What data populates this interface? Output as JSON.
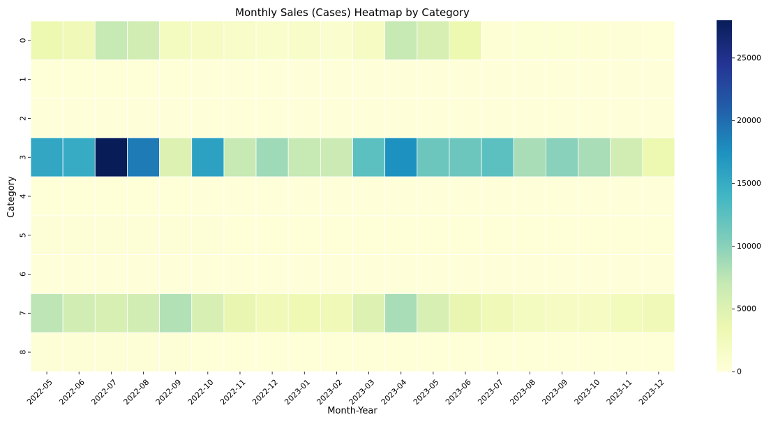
{
  "chart_data": {
    "type": "heatmap",
    "title": "Monthly Sales (Cases) Heatmap by Category",
    "xlabel": "Month-Year",
    "ylabel": "Category",
    "x": [
      "2022-05",
      "2022-06",
      "2022-07",
      "2022-08",
      "2022-09",
      "2022-10",
      "2022-11",
      "2022-12",
      "2023-01",
      "2023-02",
      "2023-03",
      "2023-04",
      "2023-05",
      "2023-06",
      "2023-07",
      "2023-08",
      "2023-09",
      "2023-10",
      "2023-11",
      "2023-12"
    ],
    "y": [
      "0",
      "1",
      "2",
      "3",
      "4",
      "5",
      "6",
      "7",
      "8"
    ],
    "values": [
      [
        3500,
        3000,
        7000,
        6000,
        2200,
        2000,
        1500,
        1200,
        1400,
        1000,
        2000,
        7000,
        5500,
        3500,
        400,
        500,
        500,
        400,
        300,
        200
      ],
      [
        200,
        200,
        200,
        200,
        200,
        100,
        100,
        100,
        100,
        100,
        100,
        100,
        100,
        100,
        100,
        100,
        100,
        100,
        100,
        100
      ],
      [
        100,
        100,
        100,
        100,
        100,
        100,
        100,
        100,
        100,
        100,
        100,
        100,
        100,
        100,
        100,
        100,
        100,
        100,
        100,
        100
      ],
      [
        15500,
        15000,
        28000,
        19000,
        5000,
        16000,
        7000,
        9000,
        7000,
        6500,
        12500,
        17500,
        11500,
        11500,
        12500,
        8500,
        10000,
        8500,
        6000,
        3500
      ],
      [
        200,
        200,
        200,
        200,
        200,
        100,
        100,
        100,
        100,
        100,
        100,
        100,
        100,
        100,
        100,
        100,
        100,
        100,
        100,
        100
      ],
      [
        300,
        300,
        300,
        300,
        300,
        300,
        200,
        200,
        200,
        200,
        200,
        200,
        200,
        200,
        200,
        200,
        200,
        200,
        200,
        200
      ],
      [
        100,
        100,
        100,
        100,
        100,
        100,
        100,
        100,
        100,
        100,
        100,
        100,
        100,
        100,
        100,
        100,
        100,
        100,
        100,
        100
      ],
      [
        7500,
        6000,
        5500,
        6000,
        8000,
        5500,
        4000,
        3000,
        3200,
        3000,
        5000,
        8500,
        5500,
        4000,
        3000,
        2200,
        2000,
        2000,
        2500,
        3000
      ],
      [
        300,
        300,
        300,
        300,
        300,
        200,
        200,
        200,
        200,
        200,
        200,
        200,
        200,
        200,
        200,
        200,
        200,
        200,
        200,
        200
      ]
    ],
    "vmin": 0,
    "vmax": 28000,
    "colormap": "YlGnBu",
    "colorbar_ticks": [
      0,
      5000,
      10000,
      15000,
      20000,
      25000
    ],
    "grid": true,
    "colors": {
      "cell_border": "#ffffff",
      "colormap_stops": [
        "#ffffd9",
        "#edf8b1",
        "#c7e9b4",
        "#7fcdbb",
        "#41b6c4",
        "#1d91c0",
        "#225ea8",
        "#253494",
        "#081d58"
      ]
    }
  }
}
